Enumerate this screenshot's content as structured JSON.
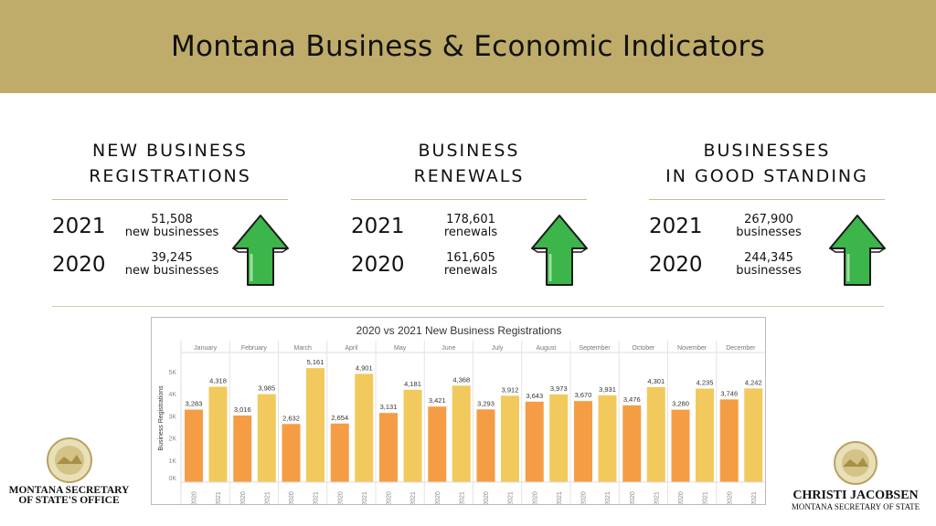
{
  "header": {
    "title": "Montana Business & Economic Indicators"
  },
  "panels": [
    {
      "title_lines": [
        "NEW BUSINESS",
        "REGISTRATIONS"
      ],
      "rows": [
        {
          "year": "2021",
          "value": "51,508",
          "unit": "new businesses"
        },
        {
          "year": "2020",
          "value": "39,245",
          "unit": "new businesses"
        }
      ],
      "trend": "up-arrow-icon"
    },
    {
      "title_lines": [
        "BUSINESS",
        "RENEWALS"
      ],
      "rows": [
        {
          "year": "2021",
          "value": "178,601",
          "unit": "renewals"
        },
        {
          "year": "2020",
          "value": "161,605",
          "unit": "renewals"
        }
      ],
      "trend": "up-arrow-icon"
    },
    {
      "title_lines": [
        "BUSINESSES",
        "IN GOOD STANDING"
      ],
      "rows": [
        {
          "year": "2021",
          "value": "267,900",
          "unit": "businesses"
        },
        {
          "year": "2020",
          "value": "244,345",
          "unit": "businesses"
        }
      ],
      "trend": "up-arrow-icon"
    }
  ],
  "colors": {
    "banner": "#bfac6a",
    "arrow": "#3cb54a",
    "bar_2020": "#f59d45",
    "bar_2021": "#f2c95c"
  },
  "chart_data": {
    "type": "bar",
    "title": "2020 vs 2021 New Business Registrations",
    "ylabel": "Business Registrations",
    "yticks": [
      "0K",
      "1K",
      "2K",
      "3K",
      "4K",
      "5K"
    ],
    "ylim": [
      0,
      5500
    ],
    "categories": [
      "January",
      "February",
      "March",
      "April",
      "May",
      "June",
      "July",
      "August",
      "September",
      "October",
      "November",
      "December"
    ],
    "series": [
      {
        "name": "2020",
        "values": [
          3283,
          3016,
          2632,
          2654,
          3131,
          3421,
          3293,
          3643,
          3670,
          3476,
          3280,
          3746
        ]
      },
      {
        "name": "2021",
        "values": [
          4318,
          3985,
          5161,
          4901,
          4181,
          4368,
          3912,
          3973,
          3931,
          4301,
          4235,
          4242
        ]
      }
    ],
    "grid": false
  },
  "logos": {
    "left": [
      "MONTANA SECRETARY",
      "OF STATE'S OFFICE"
    ],
    "right": [
      "CHRISTI JACOBSEN",
      "MONTANA SECRETARY OF STATE"
    ]
  }
}
